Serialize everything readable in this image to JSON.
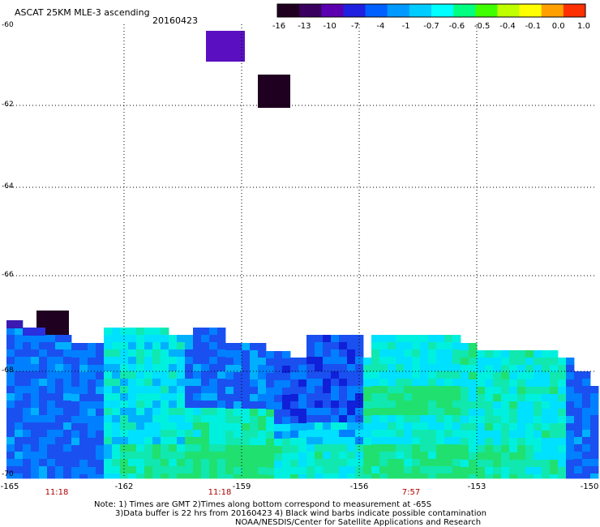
{
  "title": "ASCAT 25KM MLE-3 ascending",
  "date": "20160423",
  "colorbar": {
    "labels": [
      "-16",
      "-13",
      "-10",
      "-7",
      "-4",
      "-1",
      "-0.7",
      "-0.6",
      "-0.5",
      "-0.4",
      "-0.1",
      "0.0",
      "1.0"
    ],
    "colors": [
      "#200020",
      "#3a0060",
      "#5a00b0",
      "#2020e0",
      "#0060ff",
      "#0099ff",
      "#00ccff",
      "#00ffff",
      "#00ff80",
      "#40ff00",
      "#c0ff00",
      "#ffff00",
      "#ffa000",
      "#ff3000"
    ]
  },
  "axes": {
    "lat_labels": [
      "-60",
      "-62",
      "-64",
      "-66",
      "-68",
      "-70"
    ],
    "lon_labels": [
      "-165",
      "-162",
      "-159",
      "-156",
      "-153",
      "-150"
    ]
  },
  "time_labels": [
    "11:18",
    "11:18",
    "7:57"
  ],
  "notes": [
    "Note: 1) Times are GMT 2)Times along bottom correspond to measurement at -65S",
    "3)Data buffer is 22 hrs from 20160423 4) Black wind barbs indicate possible contamination",
    "NOAA/NESDIS/Center for Satellite Applications and Research"
  ],
  "colors": {
    "dark_purple": "#200020",
    "violet": "#5a10c0",
    "blue": "#1a40e0",
    "mid_blue": "#0070ff",
    "cyan": "#00e0ff",
    "green": "#20e070"
  }
}
